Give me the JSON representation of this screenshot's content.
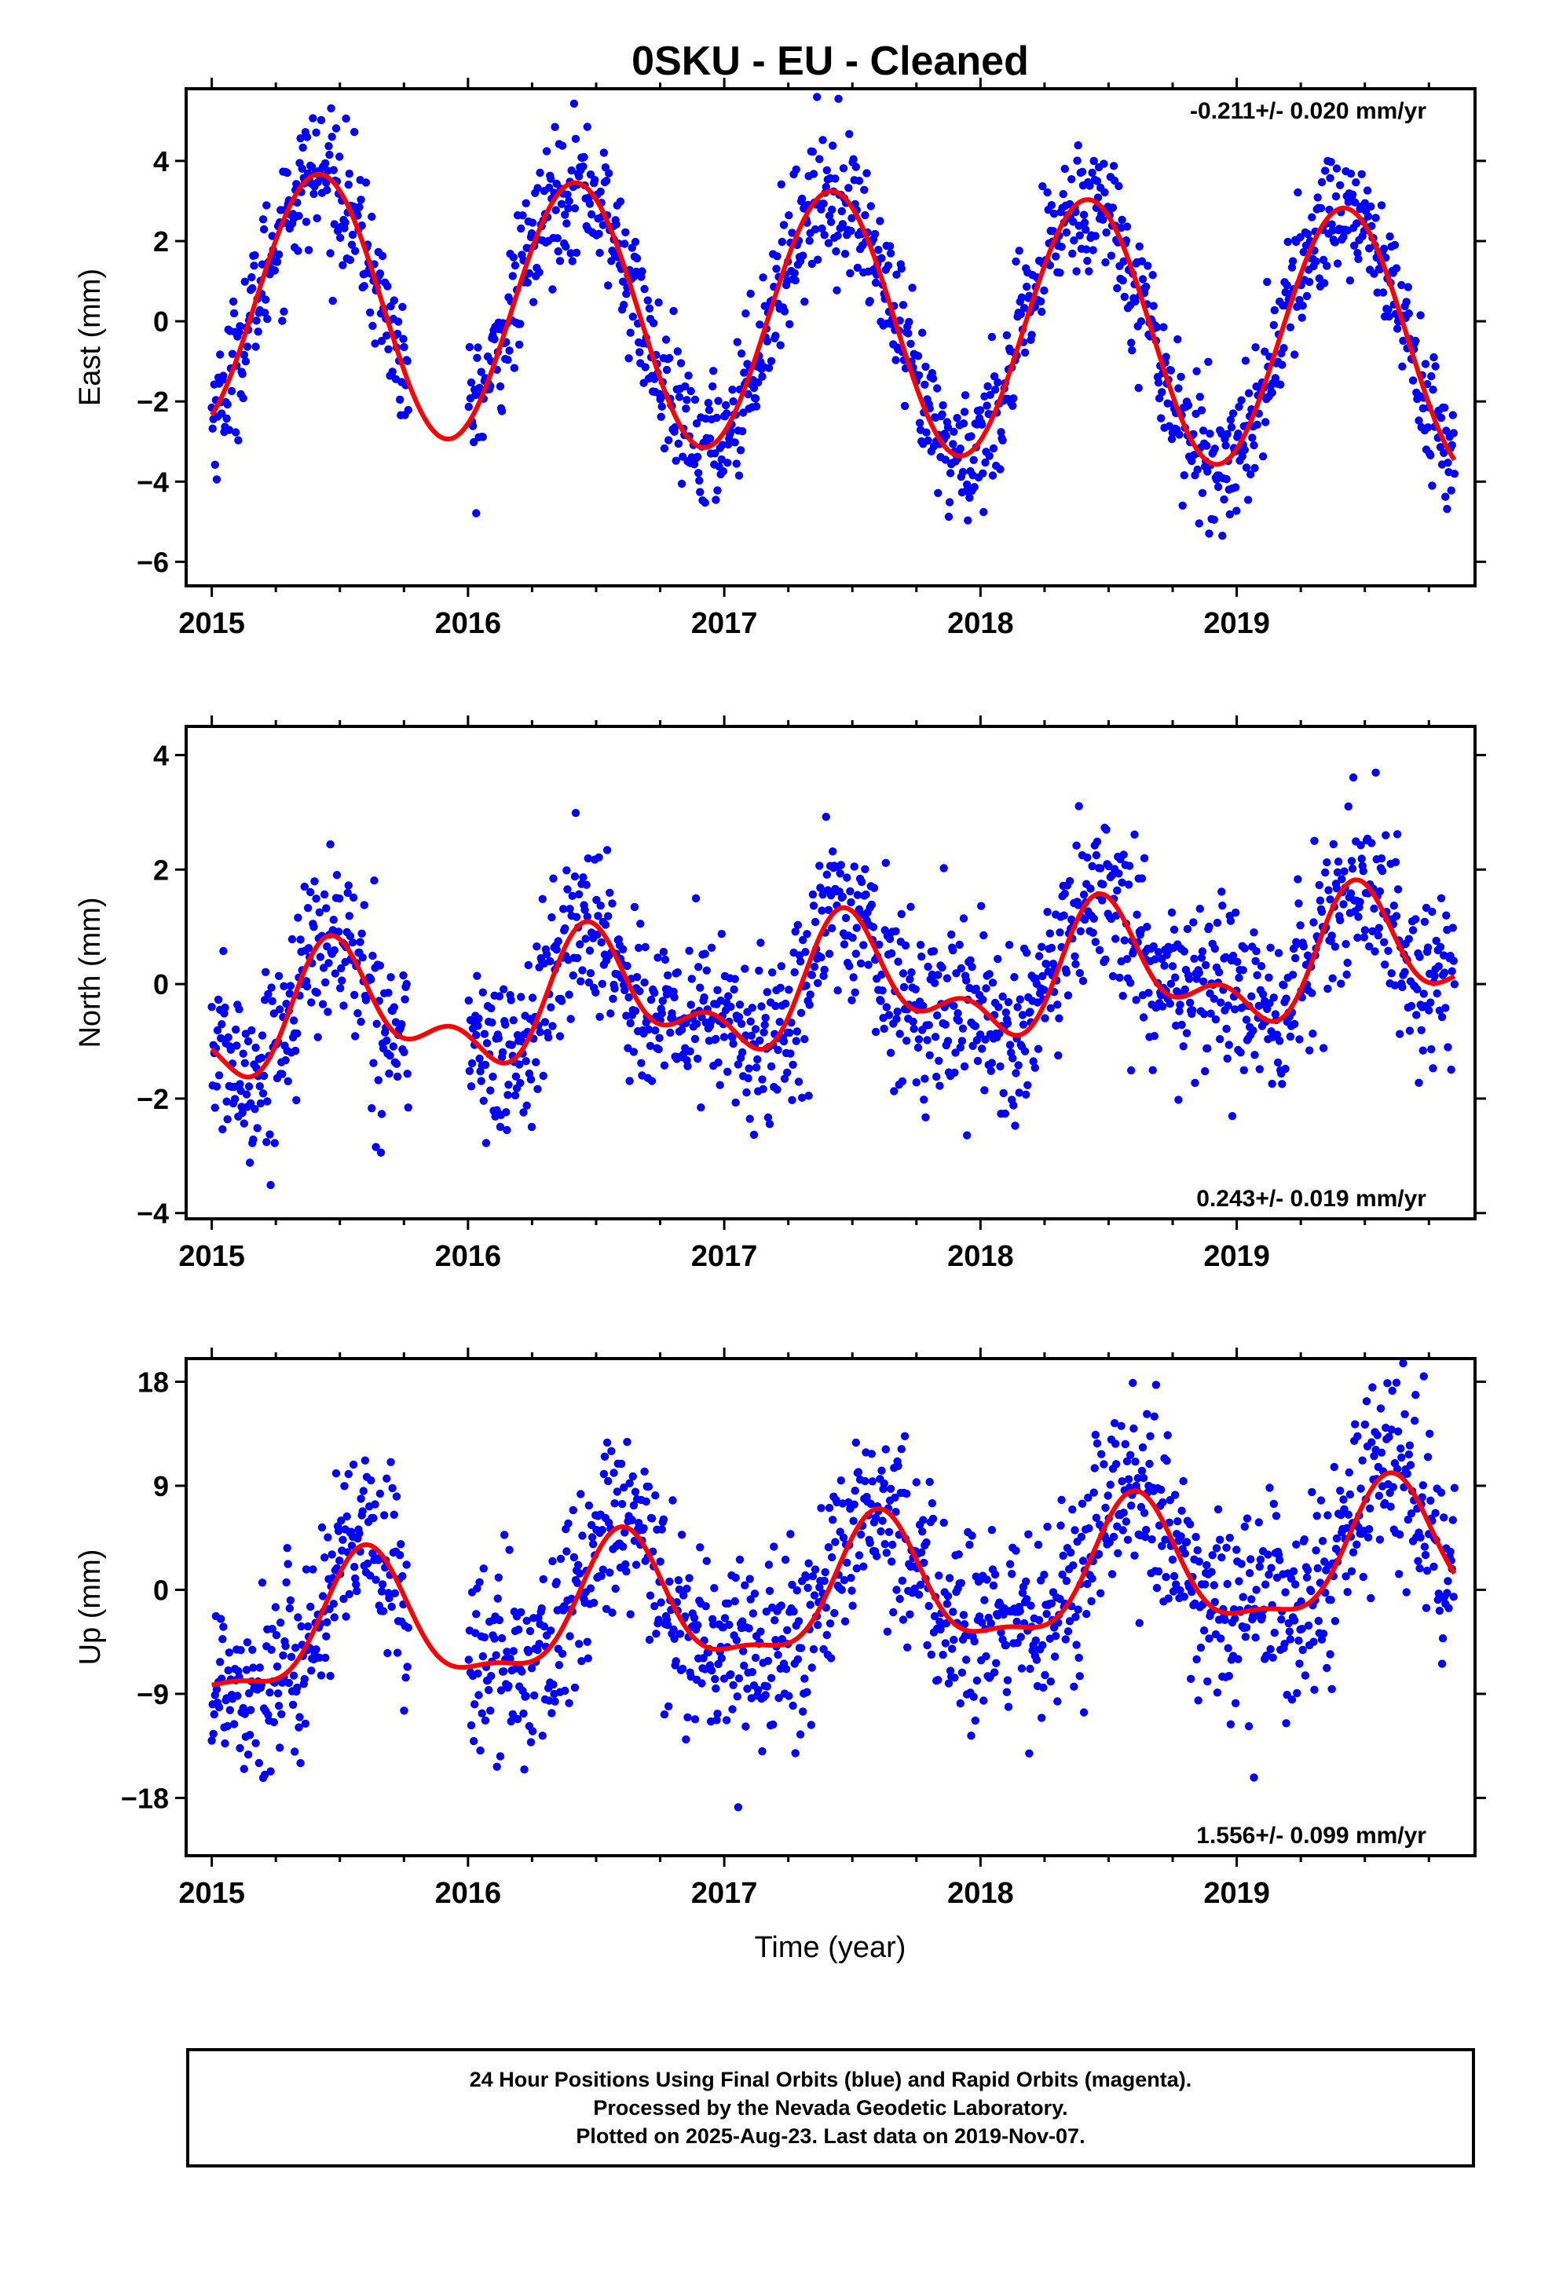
{
  "title": "0SKU  - EU - Cleaned",
  "xlabel": "Time (year)",
  "caption": [
    "24 Hour Positions Using Final Orbits (blue) and Rapid Orbits (magenta).",
    "Processed by the Nevada Geodetic Laboratory.",
    "Plotted on 2025-Aug-23. Last data on 2019-Nov-07."
  ],
  "colors": {
    "points": "#0000ff",
    "fit": "#ff0000",
    "axes": "#000000"
  },
  "chart_data": [
    {
      "type": "scatter",
      "name": "east",
      "ylabel": "East (mm)",
      "rate_label": "-0.211+/- 0.020 mm/yr",
      "rate_position": "top-right",
      "xlim": [
        2014.9,
        2019.93
      ],
      "ylim": [
        -6.6,
        5.8
      ],
      "yticks": [
        4,
        2,
        0,
        -2,
        -4,
        -6
      ],
      "ytick_labels": [
        "4",
        "2",
        "0",
        "−2",
        "−4",
        "−6"
      ],
      "xticks": [
        2015,
        2016,
        2017,
        2018,
        2019
      ],
      "xtick_labels": [
        "2015",
        "2016",
        "2017",
        "2018",
        "2019"
      ],
      "data_range": [
        2015.0,
        2019.85
      ],
      "gaps": [
        [
          2015.77,
          2016.0
        ]
      ],
      "model": {
        "rate": -0.211,
        "ref_year": 2017.4,
        "offset": 0.0,
        "annual_amp": 3.25,
        "annual_peak": 2015.42,
        "semiannual_amp": 0.0,
        "semiannual_peak": 2015.0
      },
      "scatter_sigma": 0.85,
      "n_points": 1500,
      "fit_curve": [
        [
          2015.0,
          -2.2
        ],
        [
          2015.42,
          3.5
        ],
        [
          2015.92,
          -3.0
        ],
        [
          2016.42,
          3.4
        ],
        [
          2016.9,
          -3.2
        ],
        [
          2017.42,
          3.2
        ],
        [
          2017.88,
          -3.4
        ],
        [
          2018.4,
          2.9
        ],
        [
          2018.88,
          -3.6
        ],
        [
          2019.4,
          2.7
        ],
        [
          2019.85,
          -3.7
        ]
      ]
    },
    {
      "type": "scatter",
      "name": "north",
      "ylabel": "North (mm)",
      "rate_label": "0.243+/- 0.019 mm/yr",
      "rate_position": "bottom-right",
      "xlim": [
        2014.9,
        2019.93
      ],
      "ylim": [
        -4.1,
        4.5
      ],
      "yticks": [
        4,
        2,
        0,
        -2,
        -4
      ],
      "ytick_labels": [
        "4",
        "2",
        "0",
        "−2",
        "−4"
      ],
      "xticks": [
        2015,
        2016,
        2017,
        2018,
        2019
      ],
      "xtick_labels": [
        "2015",
        "2016",
        "2017",
        "2018",
        "2019"
      ],
      "data_range": [
        2015.0,
        2019.85
      ],
      "gaps": [
        [
          2015.77,
          2016.0
        ]
      ],
      "model": {
        "rate": 0.243,
        "ref_year": 2017.4,
        "offset": -0.1,
        "annual_amp": 0.9,
        "annual_peak": 2015.5,
        "semiannual_amp": 0.55,
        "semiannual_peak": 2015.45
      },
      "scatter_sigma": 0.75,
      "n_points": 1500,
      "fit_curve": [
        [
          2015.0,
          -0.7
        ],
        [
          2015.15,
          -1.6
        ],
        [
          2015.5,
          0.8
        ],
        [
          2016.2,
          -1.4
        ],
        [
          2016.5,
          1.0
        ],
        [
          2017.2,
          -1.2
        ],
        [
          2017.5,
          1.3
        ],
        [
          2018.2,
          -0.9
        ],
        [
          2018.5,
          1.6
        ],
        [
          2019.2,
          -0.7
        ],
        [
          2019.5,
          1.8
        ],
        [
          2019.85,
          0.6
        ]
      ]
    },
    {
      "type": "scatter",
      "name": "up",
      "ylabel": "Up (mm)",
      "rate_label": "1.556+/- 0.099 mm/yr",
      "rate_position": "bottom-right",
      "xlim": [
        2014.9,
        2019.93
      ],
      "ylim": [
        -23,
        20
      ],
      "yticks": [
        18,
        9,
        0,
        -9,
        -18
      ],
      "ytick_labels": [
        "18",
        "9",
        "0",
        "−9",
        "−18"
      ],
      "xticks": [
        2015,
        2016,
        2017,
        2018,
        2019
      ],
      "xtick_labels": [
        "2015",
        "2016",
        "2017",
        "2018",
        "2019"
      ],
      "data_range": [
        2015.0,
        2019.85
      ],
      "gaps": [
        [
          2015.77,
          2016.0
        ]
      ],
      "model": {
        "rate": 1.556,
        "ref_year": 2017.4,
        "offset": -0.6,
        "annual_amp": 5.5,
        "annual_peak": 2015.6,
        "semiannual_amp": 1.8,
        "semiannual_peak": 2015.6
      },
      "scatter_sigma": 4.2,
      "n_points": 1500,
      "fit_curve": [
        [
          2015.0,
          -9.5
        ],
        [
          2015.6,
          3.5
        ],
        [
          2015.97,
          -8.5
        ],
        [
          2016.6,
          5.0
        ],
        [
          2016.97,
          -6.8
        ],
        [
          2017.6,
          6.5
        ],
        [
          2017.95,
          -5.2
        ],
        [
          2018.6,
          8.3
        ],
        [
          2018.97,
          -3.8
        ],
        [
          2019.6,
          9.8
        ],
        [
          2019.85,
          0.0
        ]
      ]
    }
  ]
}
